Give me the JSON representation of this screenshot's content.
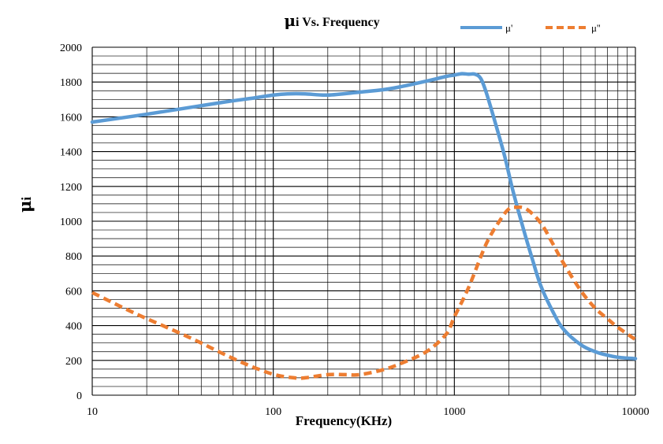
{
  "chart_data": {
    "type": "line",
    "title_symbol": "μ",
    "title_suffix": "i Vs. Frequency",
    "xlabel": "Frequency(KHz)",
    "ylabel_symbol": "μ",
    "ylabel_suffix": "i",
    "x_scale": "log",
    "xlim": [
      10,
      10000
    ],
    "ylim": [
      0,
      2000
    ],
    "x_ticks": [
      10,
      100,
      1000,
      10000
    ],
    "y_ticks": [
      0,
      200,
      400,
      600,
      800,
      1000,
      1200,
      1400,
      1600,
      1800,
      2000
    ],
    "grid": true,
    "legend_position": "top-right",
    "series": [
      {
        "name": "μ'",
        "color": "#5B9BD5",
        "style": "solid",
        "x": [
          10,
          20,
          50,
          80,
          100,
          120,
          150,
          200,
          300,
          400,
          500,
          700,
          900,
          1000,
          1100,
          1200,
          1300,
          1400,
          1500,
          1700,
          1900,
          2100,
          2400,
          2700,
          3000,
          3500,
          4000,
          5000,
          6000,
          7000,
          8000,
          10000
        ],
        "y": [
          1570,
          1615,
          1680,
          1710,
          1725,
          1732,
          1732,
          1725,
          1742,
          1755,
          1772,
          1805,
          1832,
          1840,
          1848,
          1845,
          1845,
          1820,
          1740,
          1550,
          1370,
          1180,
          960,
          780,
          630,
          480,
          380,
          290,
          250,
          230,
          218,
          210
        ]
      },
      {
        "name": "μ''",
        "color": "#ED7D31",
        "style": "dashed",
        "x": [
          10,
          15,
          20,
          30,
          40,
          50,
          70,
          100,
          130,
          150,
          200,
          250,
          300,
          400,
          500,
          700,
          900,
          1000,
          1200,
          1500,
          1800,
          2000,
          2200,
          2500,
          3000,
          3500,
          4000,
          5000,
          6000,
          7000,
          8000,
          10000
        ],
        "y": [
          590,
          500,
          440,
          360,
          300,
          250,
          180,
          120,
          100,
          100,
          118,
          118,
          118,
          145,
          180,
          250,
          350,
          450,
          620,
          870,
          1010,
          1070,
          1080,
          1070,
          990,
          870,
          760,
          600,
          500,
          440,
          390,
          320
        ]
      }
    ]
  }
}
